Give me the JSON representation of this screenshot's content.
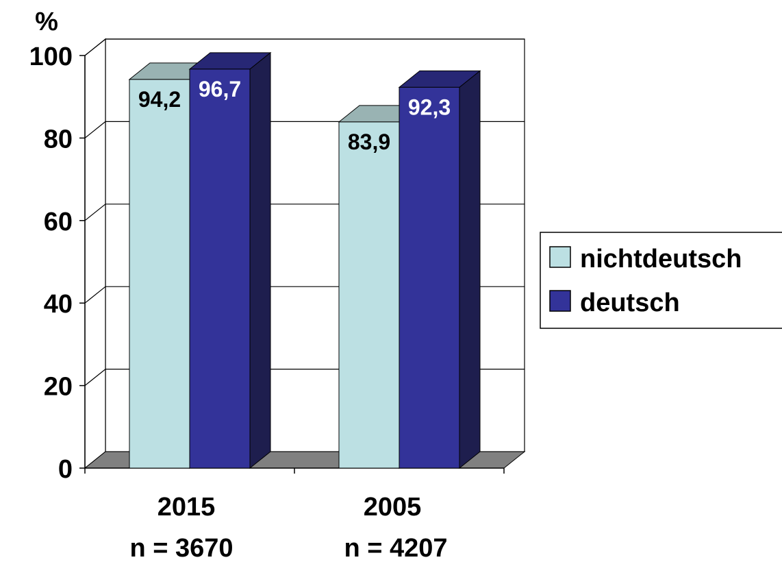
{
  "chart_data": {
    "type": "bar",
    "ylabel": "%",
    "ylim": [
      0,
      100
    ],
    "yticks": [
      0,
      20,
      40,
      60,
      80,
      100
    ],
    "grid": true,
    "legend_position": "right",
    "categories": [
      "2015",
      "2005"
    ],
    "category_sublabels": [
      "n = 3670",
      "n = 4207"
    ],
    "series": [
      {
        "name": "nichtdeutsch",
        "values": [
          94.2,
          83.9
        ],
        "value_labels": [
          "94,2",
          "83,9"
        ],
        "color": "#bce0e3",
        "label_color": "#000000"
      },
      {
        "name": "deutsch",
        "values": [
          96.7,
          92.3
        ],
        "value_labels": [
          "96,7",
          "92,3"
        ],
        "color": "#333399",
        "label_color": "#ffffff"
      }
    ]
  }
}
